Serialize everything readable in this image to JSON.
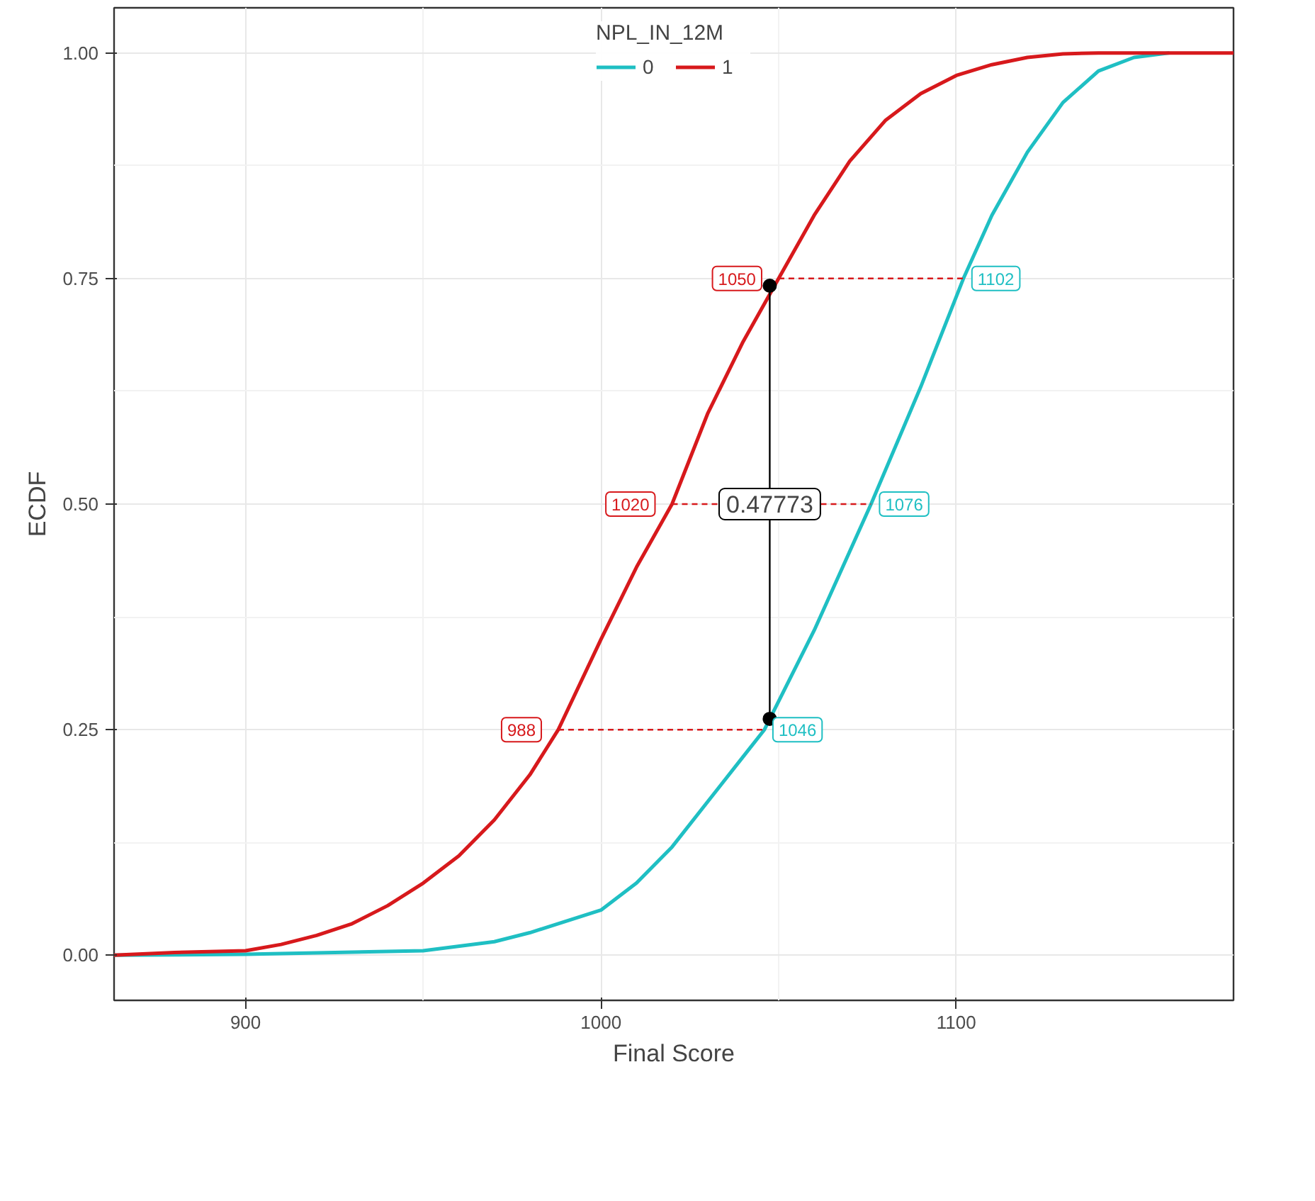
{
  "chart_data": {
    "type": "line",
    "xlabel": "Final Score",
    "ylabel": "ECDF",
    "legend_title": "NPL_IN_12M",
    "legend": "top",
    "grid": true,
    "xlim": [
      863,
      1178
    ],
    "ylim": [
      -0.05,
      1.05
    ],
    "xticks": [
      900,
      1000,
      1100
    ],
    "yticks": [
      {
        "value": 0,
        "label": "0.00"
      },
      {
        "value": 0.25,
        "label": "0.25"
      },
      {
        "value": 0.5,
        "label": "0.50"
      },
      {
        "value": 0.75,
        "label": "0.75"
      },
      {
        "value": 1,
        "label": "1.00"
      }
    ],
    "series": [
      {
        "name": "0",
        "color": "#1fbfc3",
        "x": [
          863,
          900,
          950,
          970,
          980,
          1000,
          1010,
          1020,
          1030,
          1040,
          1046,
          1060,
          1076,
          1090,
          1102,
          1110,
          1120,
          1130,
          1140,
          1150,
          1160
        ],
        "values": [
          0,
          0.001,
          0.005,
          0.015,
          0.025,
          0.05,
          0.08,
          0.12,
          0.17,
          0.22,
          0.25,
          0.36,
          0.5,
          0.63,
          0.75,
          0.82,
          0.89,
          0.945,
          0.98,
          0.995,
          1
        ]
      },
      {
        "name": "1",
        "color": "#d7191c",
        "x": [
          863,
          880,
          900,
          910,
          920,
          930,
          940,
          950,
          960,
          970,
          980,
          988,
          1000,
          1010,
          1020,
          1030,
          1040,
          1050,
          1060,
          1070,
          1080,
          1090,
          1100,
          1110,
          1120,
          1130,
          1140,
          1178
        ],
        "values": [
          0,
          0.003,
          0.005,
          0.012,
          0.022,
          0.035,
          0.055,
          0.08,
          0.11,
          0.15,
          0.2,
          0.25,
          0.35,
          0.43,
          0.5,
          0.6,
          0.68,
          0.75,
          0.82,
          0.88,
          0.925,
          0.955,
          0.975,
          0.987,
          0.995,
          0.999,
          1,
          1
        ]
      },
      {
        "color": "#d7191c",
        "line_style": "dashed",
        "x": [
          988,
          1046
        ],
        "values": [
          0.25,
          0.25
        ]
      },
      {
        "color": "#d7191c",
        "line_style": "dashed",
        "x": [
          1020,
          1076
        ],
        "values": [
          0.5,
          0.5
        ]
      },
      {
        "color": "#d7191c",
        "line_style": "dashed",
        "x": [
          1050,
          1102
        ],
        "values": [
          0.75,
          0.75
        ]
      },
      {
        "color": "#000000",
        "marker": "circle",
        "x": [
          1047.5,
          1047.5
        ],
        "values": [
          0.262,
          0.742
        ]
      }
    ],
    "annotations": [
      {
        "text": "0.47773",
        "x": 1047.5,
        "y": 0.5
      },
      {
        "text": "988",
        "x": 988,
        "y": 0.25
      },
      {
        "text": "1020",
        "x": 1020,
        "y": 0.5
      },
      {
        "text": "1050",
        "x": 1050,
        "y": 0.75
      },
      {
        "text": "1046",
        "x": 1046,
        "y": 0.25
      },
      {
        "text": "1076",
        "x": 1076,
        "y": 0.5
      },
      {
        "text": "1102",
        "x": 1102,
        "y": 0.75
      }
    ]
  }
}
